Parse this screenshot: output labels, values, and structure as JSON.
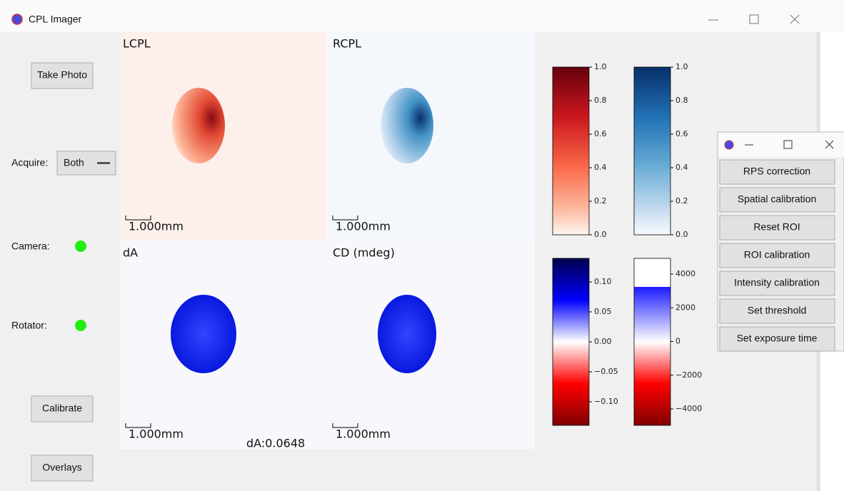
{
  "window": {
    "title": "CPL Imager"
  },
  "controls": {
    "take_photo": "Take Photo",
    "acquire_label": "Acquire:",
    "acquire_value": "Both",
    "camera_label": "Camera:",
    "rotator_label": "Rotator:",
    "calibrate": "Calibrate",
    "overlays": "Overlays"
  },
  "panels": [
    {
      "title": "LCPL",
      "scale_bar": "1.000mm"
    },
    {
      "title": "RCPL",
      "scale_bar": "1.000mm"
    },
    {
      "title": "dA",
      "scale_bar": "1.000mm"
    },
    {
      "title": "CD (mdeg)",
      "scale_bar": "1.000mm"
    }
  ],
  "readout": "dA:0.0648",
  "colorbars": [
    {
      "ticks": [
        "1.0",
        "0.8",
        "0.6",
        "0.4",
        "0.2",
        "0.0"
      ]
    },
    {
      "ticks": [
        "1.0",
        "0.8",
        "0.6",
        "0.4",
        "0.2",
        "0.0"
      ]
    },
    {
      "ticks": [
        "0.10",
        "0.05",
        "0.00",
        "−0.05",
        "−0.10"
      ]
    },
    {
      "ticks": [
        "4000",
        "2000",
        "0",
        "−2000",
        "−4000"
      ]
    }
  ],
  "popup": {
    "buttons": [
      "RPS correction",
      "Spatial calibration",
      "Reset ROI",
      "ROI calibration",
      "Intensity calibration",
      "Set threshold",
      "Set exposure time"
    ]
  }
}
